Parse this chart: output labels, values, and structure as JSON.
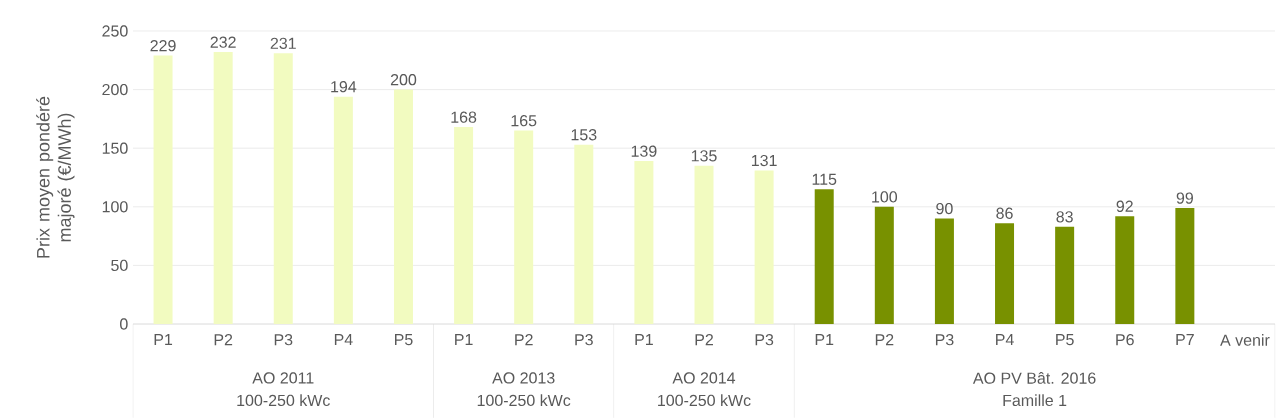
{
  "chart_data": {
    "type": "bar",
    "ylabel": "Prix moyen pondéré majoré (€/MWh)",
    "categories": [
      "P1",
      "P2",
      "P3",
      "P4",
      "P5",
      "P1",
      "P2",
      "P3",
      "P1",
      "P2",
      "P3",
      "P1",
      "P2",
      "P3",
      "P4",
      "P5",
      "P6",
      "P7",
      "A venir"
    ],
    "values": [
      229,
      232,
      231,
      194,
      200,
      168,
      165,
      153,
      139,
      135,
      131,
      115,
      100,
      90,
      86,
      83,
      92,
      99,
      null
    ],
    "colors": [
      "#f2fbc0",
      "#f2fbc0",
      "#f2fbc0",
      "#f2fbc0",
      "#f2fbc0",
      "#f2fbc0",
      "#f2fbc0",
      "#f2fbc0",
      "#f2fbc0",
      "#f2fbc0",
      "#f2fbc0",
      "#789100",
      "#789100",
      "#789100",
      "#789100",
      "#789100",
      "#789100",
      "#789100",
      "#789100"
    ],
    "data_labels": true,
    "ylim": [
      0,
      250
    ],
    "yticks": [
      0,
      50,
      100,
      150,
      200,
      250
    ],
    "grid": "y",
    "annotations": [
      "AO 2011",
      "100-250 kWc",
      "AO 2013",
      "100-250 kWc",
      "AO 2014",
      "100-250 kWc",
      "AO PV Bât. 2016",
      "Famille 1"
    ]
  }
}
